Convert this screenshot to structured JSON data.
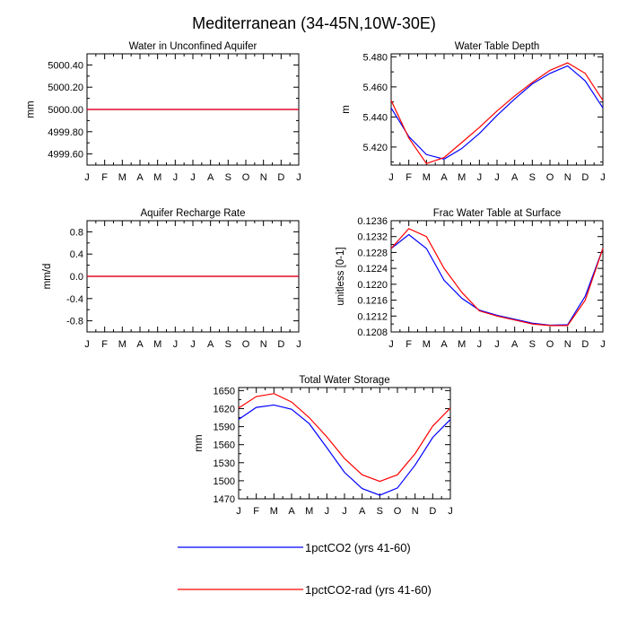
{
  "figure": {
    "title": "Mediterranean (34-45N,10W-30E)"
  },
  "colors": {
    "series_1": "#0000ff",
    "series_2": "#ff0000",
    "axis": "#000000"
  },
  "legend": {
    "placement": "bottom-center",
    "entries": [
      {
        "label": "1pctCO2 (yrs 41-60)",
        "color": "#0000ff"
      },
      {
        "label": "1pctCO2-rad (yrs 41-60)",
        "color": "#ff0000"
      }
    ]
  },
  "chart_data": [
    {
      "id": "unconfined",
      "type": "line",
      "title": "Water in Unconfined Aquifer",
      "ylabel": "mm",
      "xlabel": "",
      "categories": [
        "J",
        "F",
        "M",
        "A",
        "M",
        "J",
        "J",
        "A",
        "S",
        "O",
        "N",
        "D",
        "J"
      ],
      "ylim": [
        4999.5,
        5000.5
      ],
      "yticks": [
        4999.6,
        4999.8,
        5000.0,
        5000.2,
        5000.4
      ],
      "ytick_labels": [
        "4999.60",
        "4999.80",
        "5000.00",
        "5000.20",
        "5000.40"
      ],
      "series": [
        {
          "values": [
            5000,
            5000,
            5000,
            5000,
            5000,
            5000,
            5000,
            5000,
            5000,
            5000,
            5000,
            5000,
            5000
          ]
        },
        {
          "values": [
            5000,
            5000,
            5000,
            5000,
            5000,
            5000,
            5000,
            5000,
            5000,
            5000,
            5000,
            5000,
            5000
          ]
        }
      ]
    },
    {
      "id": "wtd",
      "type": "line",
      "title": "Water Table Depth",
      "ylabel": "m",
      "xlabel": "",
      "categories": [
        "J",
        "F",
        "M",
        "A",
        "M",
        "J",
        "J",
        "A",
        "S",
        "O",
        "N",
        "D",
        "J"
      ],
      "ylim": [
        5.408,
        5.482
      ],
      "yticks": [
        5.42,
        5.44,
        5.46,
        5.48
      ],
      "ytick_labels": [
        "5.420",
        "5.440",
        "5.460",
        "5.480"
      ],
      "series": [
        {
          "values": [
            5.446,
            5.427,
            5.415,
            5.412,
            5.419,
            5.429,
            5.441,
            5.452,
            5.462,
            5.469,
            5.474,
            5.464,
            5.446
          ]
        },
        {
          "values": [
            5.451,
            5.426,
            5.409,
            5.413,
            5.423,
            5.433,
            5.444,
            5.454,
            5.463,
            5.471,
            5.476,
            5.469,
            5.451
          ]
        }
      ]
    },
    {
      "id": "recharge",
      "type": "line",
      "title": "Aquifer Recharge Rate",
      "ylabel": "mm/d",
      "xlabel": "",
      "categories": [
        "J",
        "F",
        "M",
        "A",
        "M",
        "J",
        "J",
        "A",
        "S",
        "O",
        "N",
        "D",
        "J"
      ],
      "ylim": [
        -1.0,
        1.0
      ],
      "yticks": [
        -0.8,
        -0.4,
        0.0,
        0.4,
        0.8
      ],
      "ytick_labels": [
        "-0.8",
        "-0.4",
        "0.0",
        "0.4",
        "0.8"
      ],
      "series": [
        {
          "values": [
            0,
            0,
            0,
            0,
            0,
            0,
            0,
            0,
            0,
            0,
            0,
            0,
            0
          ]
        },
        {
          "values": [
            0,
            0,
            0,
            0,
            0,
            0,
            0,
            0,
            0,
            0,
            0,
            0,
            0
          ]
        }
      ]
    },
    {
      "id": "fwt",
      "type": "line",
      "title": "Frac Water Table at Surface",
      "ylabel": "unitless [0-1]",
      "xlabel": "",
      "categories": [
        "J",
        "F",
        "M",
        "A",
        "M",
        "J",
        "J",
        "A",
        "S",
        "O",
        "N",
        "D",
        "J"
      ],
      "ylim": [
        0.1208,
        0.1236
      ],
      "yticks": [
        0.1208,
        0.1212,
        0.1216,
        0.122,
        0.1224,
        0.1228,
        0.1232,
        0.1236
      ],
      "ytick_labels": [
        "0.1208",
        "0.1212",
        "0.1216",
        "0.1220",
        "0.1224",
        "0.1228",
        "0.1232",
        "0.1236"
      ],
      "series": [
        {
          "values": [
            0.1229,
            0.12325,
            0.1229,
            0.1221,
            0.12165,
            0.12135,
            0.12122,
            0.12112,
            0.12102,
            0.12097,
            0.12098,
            0.1217,
            0.1229
          ]
        },
        {
          "values": [
            0.1229,
            0.1234,
            0.1232,
            0.1224,
            0.1218,
            0.12133,
            0.1212,
            0.1211,
            0.121,
            0.12096,
            0.12096,
            0.1216,
            0.1229
          ]
        }
      ]
    },
    {
      "id": "tws",
      "type": "line",
      "title": "Total Water Storage",
      "ylabel": "mm",
      "xlabel": "",
      "categories": [
        "J",
        "F",
        "M",
        "A",
        "M",
        "J",
        "J",
        "A",
        "S",
        "O",
        "N",
        "D",
        "J"
      ],
      "ylim": [
        1470,
        1655
      ],
      "yticks": [
        1470,
        1500,
        1530,
        1560,
        1590,
        1620,
        1650
      ],
      "ytick_labels": [
        "1470",
        "1500",
        "1530",
        "1560",
        "1590",
        "1620",
        "1650"
      ],
      "series": [
        {
          "values": [
            1602,
            1622,
            1626,
            1619,
            1595,
            1555,
            1514,
            1487,
            1476,
            1488,
            1526,
            1572,
            1602
          ]
        },
        {
          "values": [
            1621,
            1640,
            1645,
            1631,
            1605,
            1573,
            1537,
            1510,
            1499,
            1510,
            1545,
            1591,
            1621
          ]
        }
      ]
    }
  ]
}
